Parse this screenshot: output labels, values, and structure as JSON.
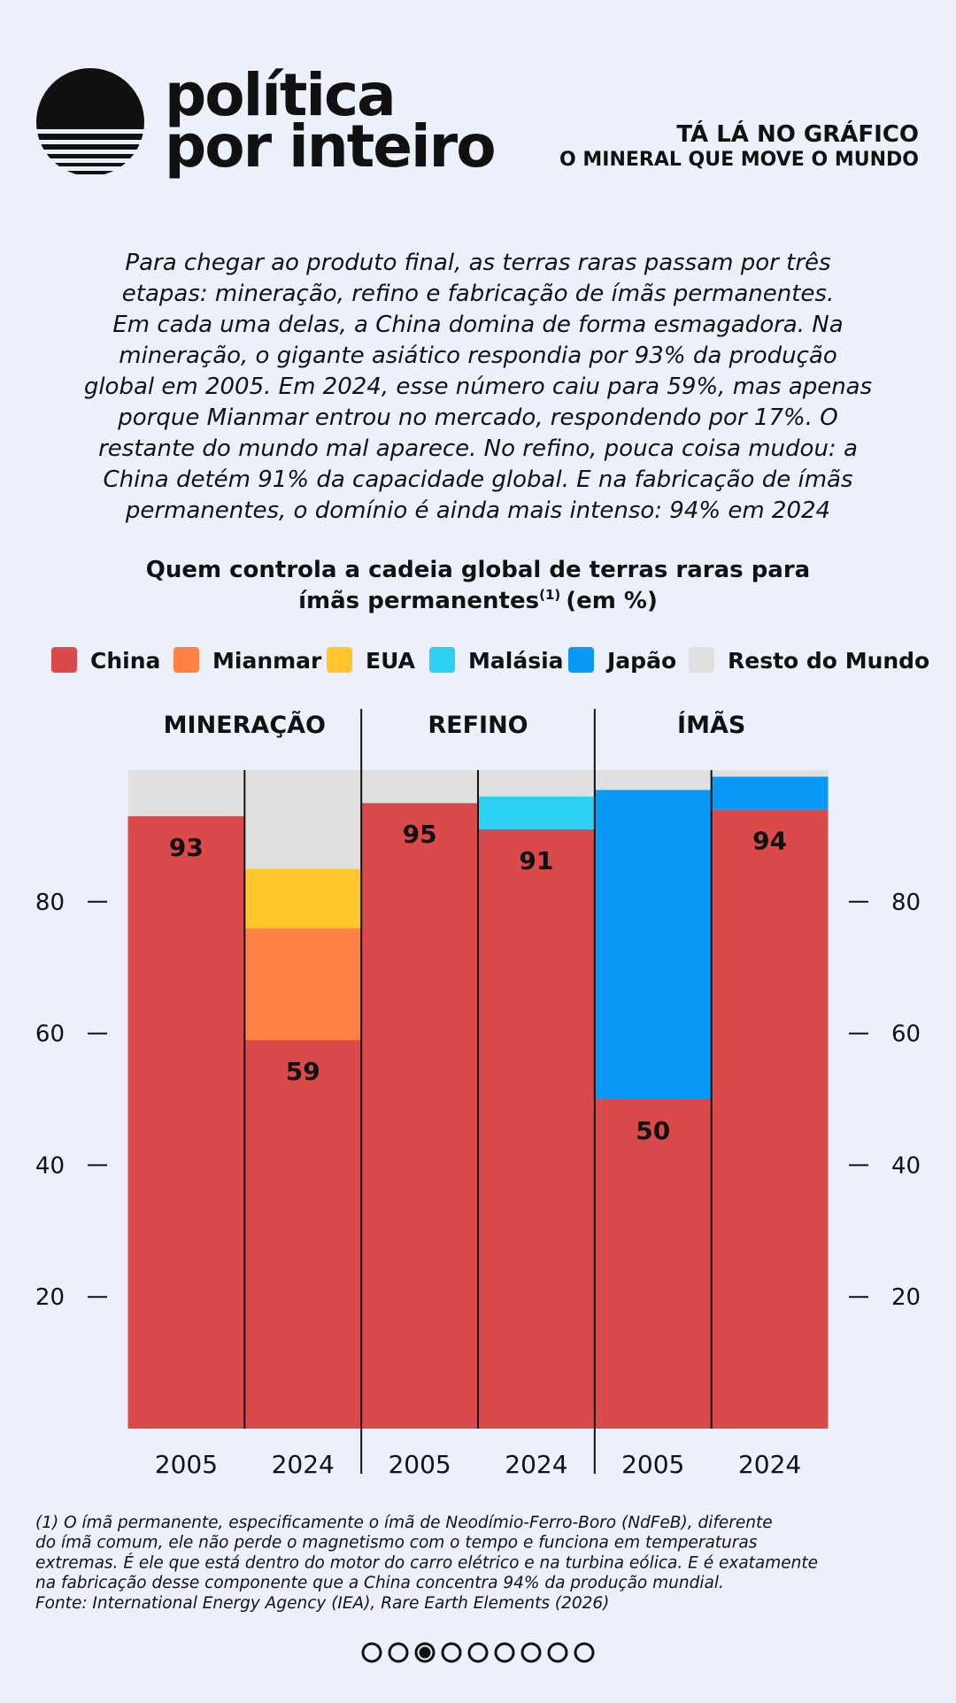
{
  "brand": {
    "line1": "política",
    "line2": "por inteiro"
  },
  "header": {
    "kicker": "TÁ LÁ NO GRÁFICO",
    "title": "O MINERAL QUE MOVE O MUNDO"
  },
  "intro": [
    "Para chegar ao produto final, as terras raras passam por três",
    "etapas: mineração, refino e fabricação de ímãs permanentes.",
    "Em cada uma delas, a China domina de forma esmagadora. Na",
    "mineração, o gigante asiático respondia por 93% da produção",
    "global em 2005. Em 2024, esse número caiu para 59%, mas apenas",
    "porque Mianmar entrou no mercado, respondendo por 17%. O",
    "restante do mundo mal aparece. No refino, pouca coisa mudou: a",
    "China detém 91% da capacidade global. E na fabricação de ímãs",
    "permanentes, o domínio é ainda mais intenso: 94% em 2024"
  ],
  "chart_data": {
    "type": "stacked_bar",
    "title": [
      "Quem controla a cadeia global de terras raras para",
      "ímãs permanentes"
    ],
    "title_note": "(1)",
    "title_suffix": "(em %)",
    "groups": [
      "MINERAÇÃO",
      "REFINO",
      "ÍMÃS"
    ],
    "categories": [
      "2005",
      "2024",
      "2005",
      "2024",
      "2005",
      "2024"
    ],
    "series": [
      {
        "name": "China",
        "color": "#db4a4a",
        "values": [
          93,
          59,
          95,
          91,
          50,
          94
        ],
        "data_labels": true
      },
      {
        "name": "Mianmar",
        "color": "#ff8244",
        "values": [
          0,
          17,
          0,
          0,
          0,
          0
        ]
      },
      {
        "name": "EUA",
        "color": "#ffc72c",
        "values": [
          0,
          9,
          0,
          0,
          0,
          0
        ]
      },
      {
        "name": "Malásia",
        "color": "#2dcff2",
        "values": [
          0,
          0,
          0,
          5,
          0,
          0
        ]
      },
      {
        "name": "Japão",
        "color": "#0a99f7",
        "values": [
          0,
          0,
          0,
          0,
          47,
          5
        ]
      },
      {
        "name": "Resto do Mundo",
        "color": "#e0e0e0",
        "values": [
          7,
          15,
          5,
          4,
          3,
          1
        ]
      }
    ],
    "ylim": [
      0,
      100
    ],
    "yticks": [
      20,
      40,
      60,
      80
    ],
    "legend": "top"
  },
  "footnote": [
    "(1) O ímã permanente, especificamente o ímã de Neodímio-Ferro-Boro (NdFeB), diferente",
    "do ímã comum, ele não perde o magnetismo com o tempo e funciona em temperaturas",
    "extremas. É ele que está dentro do motor do carro elétrico e na turbina eólica. E é exatamente",
    "na fabricação desse componente que a China concentra 94% da produção mundial."
  ],
  "source": "Fonte: International Energy Agency (IEA), Rare Earth Elements (2026)"
}
